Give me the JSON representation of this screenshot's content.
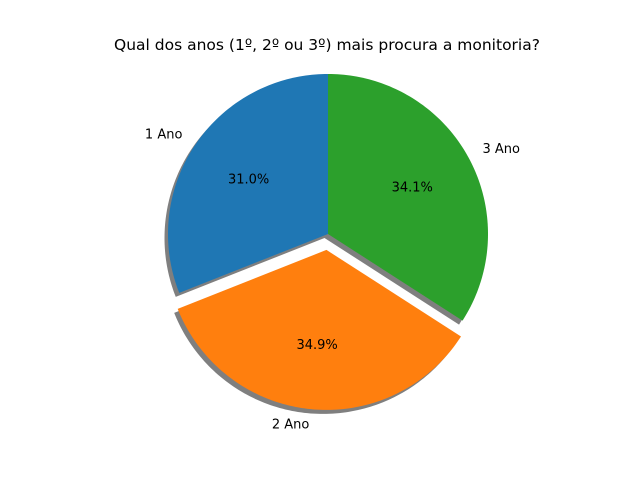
{
  "chart_data": {
    "type": "pie",
    "title": "Qual dos anos (1º, 2º ou 3º) mais procura a monitoria?",
    "categories": [
      "1 Ano",
      "2 Ano",
      "3 Ano"
    ],
    "values": [
      31.0,
      34.9,
      34.1
    ],
    "percent_labels": [
      "31.0%",
      "34.9%",
      "34.1%"
    ],
    "colors": [
      "#1f77b4",
      "#ff7f0e",
      "#2ca02c"
    ],
    "exploded": [
      "2 Ano"
    ],
    "shadow": true,
    "start_angle_deg": 90,
    "direction": "counterclockwise",
    "legend": "none"
  }
}
